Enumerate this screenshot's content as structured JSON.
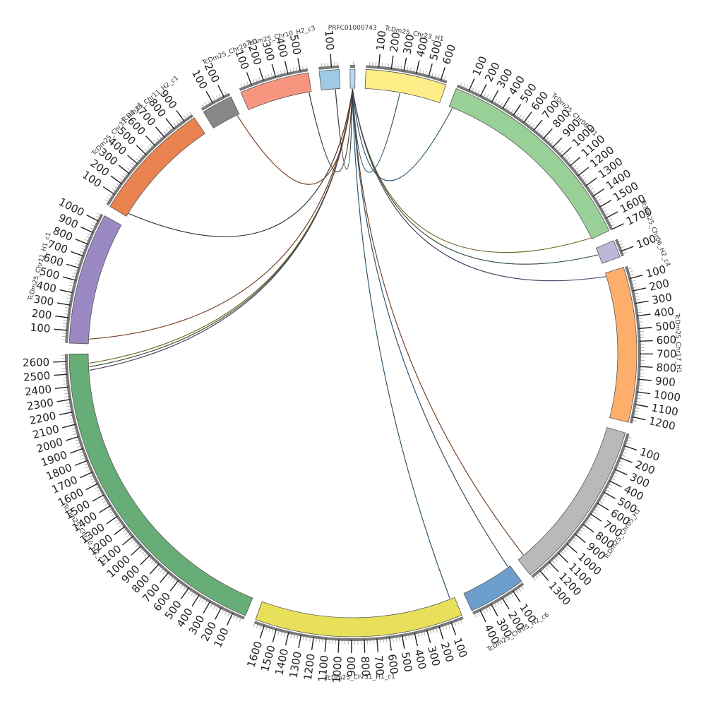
{
  "chromosomes": [
    {
      "name": "PRFC01000743",
      "length": 40,
      "color": "#bcd9f0",
      "label_shift": 0
    },
    {
      "name": "TcDm25_Chr23_H1",
      "length": 650,
      "color": "#ffee88",
      "label_shift": 0
    },
    {
      "name": "TcDm25_Chr06_H1",
      "length": 1700,
      "color": "#98d098",
      "label_shift": 0
    },
    {
      "name": "TcDm25_Chr06_H2_c4",
      "length": 140,
      "color": "#bdb7da",
      "label_shift": 0
    },
    {
      "name": "TcDm25_Chr17_H1",
      "length": 1250,
      "color": "#fdae6b",
      "label_shift": 0
    },
    {
      "name": "TcDm25_Chr05_H1",
      "length": 1380,
      "color": "#b9b9b9",
      "label_shift": 0
    },
    {
      "name": "TcDm25_Chr05_H2_c6",
      "length": 460,
      "color": "#6b9ecd",
      "label_shift": 0
    },
    {
      "name": "TcDm25_Chr31_H1_c1",
      "length": 1680,
      "color": "#e8e05a",
      "label_shift": 0
    },
    {
      "name": "TcDm25_Chr30_H2_c1",
      "length": 2660,
      "color": "#67ad78",
      "label_shift": 0
    },
    {
      "name": "TcDm25_Chr11_H1_c1",
      "length": 1060,
      "color": "#9b89c4",
      "label_shift": 0
    },
    {
      "name": "TcDm25_Chr31_H2_c1",
      "length": 980,
      "color": "#e8834f",
      "label_shift": 0
    },
    {
      "name": "TcDm25_Chr11_H2_c1",
      "length": 250,
      "color": "#888888",
      "label_shift": -10
    },
    {
      "name": "TcDm25_Chr29_H1",
      "length": 560,
      "color": "#f8957e",
      "label_shift": -6
    },
    {
      "name": "TcDm25_Chr10_H2_c3",
      "length": 160,
      "color": "#9ecae6",
      "label_shift": -8
    }
  ],
  "links": [
    {
      "from": [
        "PRFC01000743",
        20
      ],
      "to": [
        "TcDm25_Chr23_H1",
        300
      ],
      "color": "#4aa0d0"
    },
    {
      "from": [
        "PRFC01000743",
        20
      ],
      "to": [
        "TcDm25_Chr06_H1",
        30
      ],
      "color": "#4aa0d0"
    },
    {
      "from": [
        "PRFC01000743",
        20
      ],
      "to": [
        "TcDm25_Chr06_H1",
        1690
      ],
      "color": "#e0d040"
    },
    {
      "from": [
        "PRFC01000743",
        20
      ],
      "to": [
        "TcDm25_Chr06_H2_c4",
        60
      ],
      "color": "#5aa05a"
    },
    {
      "from": [
        "PRFC01000743",
        20
      ],
      "to": [
        "TcDm25_Chr17_H1",
        30
      ],
      "color": "#8878c0"
    },
    {
      "from": [
        "PRFC01000743",
        20
      ],
      "to": [
        "TcDm25_Chr05_H1",
        1320
      ],
      "color": "#e07030"
    },
    {
      "from": [
        "PRFC01000743",
        20
      ],
      "to": [
        "TcDm25_Chr05_H2_c6",
        20
      ],
      "color": "#4a90c8"
    },
    {
      "from": [
        "PRFC01000743",
        20
      ],
      "to": [
        "TcDm25_Chr31_H1_c1",
        40
      ],
      "color": "#4aa0d0"
    },
    {
      "from": [
        "PRFC01000743",
        20
      ],
      "to": [
        "TcDm25_Chr30_H2_c1",
        2580
      ],
      "color": "#e0d040"
    },
    {
      "from": [
        "PRFC01000743",
        20
      ],
      "to": [
        "TcDm25_Chr30_H2_c1",
        2550
      ],
      "color": "#5aa05a"
    },
    {
      "from": [
        "PRFC01000743",
        20
      ],
      "to": [
        "TcDm25_Chr30_H2_c1",
        2520
      ],
      "color": "#8878c0"
    },
    {
      "from": [
        "PRFC01000743",
        20
      ],
      "to": [
        "TcDm25_Chr11_H1_c1",
        40
      ],
      "color": "#e07030"
    },
    {
      "from": [
        "PRFC01000743",
        20
      ],
      "to": [
        "TcDm25_Chr31_H2_c1",
        30
      ],
      "color": "#555555"
    },
    {
      "from": [
        "PRFC01000743",
        20
      ],
      "to": [
        "TcDm25_Chr11_H2_c1",
        230
      ],
      "color": "#e07030"
    },
    {
      "from": [
        "PRFC01000743",
        20
      ],
      "to": [
        "TcDm25_Chr29_H1",
        540
      ],
      "color": "#555555"
    },
    {
      "from": [
        "PRFC01000743",
        20
      ],
      "to": [
        "TcDm25_Chr10_H2_c3",
        120
      ],
      "color": "#555555"
    }
  ]
}
